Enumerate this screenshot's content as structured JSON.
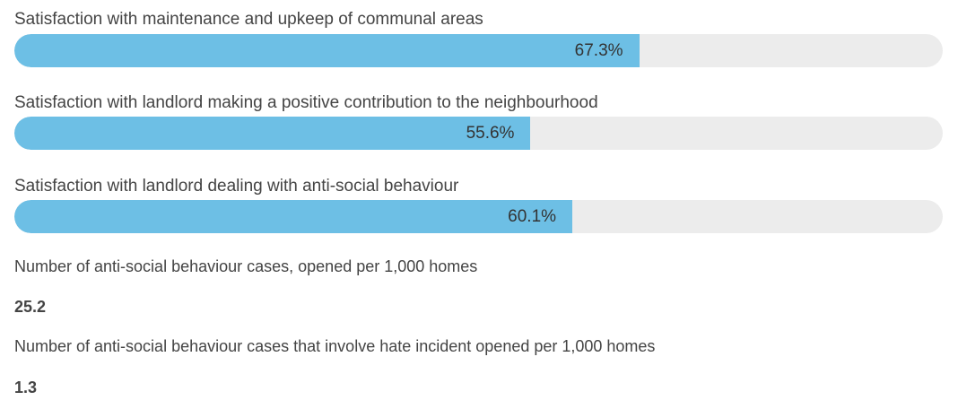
{
  "chart_data": {
    "type": "bar",
    "orientation": "horizontal",
    "xlim": [
      0,
      100
    ],
    "unit": "%",
    "categories": [
      "Satisfaction with maintenance and upkeep of communal areas",
      "Satisfaction with landlord making a positive contribution to the neighbourhood",
      "Satisfaction with landlord dealing with anti-social behaviour"
    ],
    "values": [
      67.3,
      55.6,
      60.1
    ],
    "value_labels": [
      "67.3%",
      "55.6%",
      "60.1%"
    ],
    "colors": {
      "fill": "#6dbfe5",
      "track": "#ececec"
    }
  },
  "stats": [
    {
      "label": "Number of anti-social behaviour cases, opened per 1,000 homes",
      "value": "25.2"
    },
    {
      "label": "Number of anti-social behaviour cases that involve hate incident opened per 1,000 homes",
      "value": "1.3"
    }
  ]
}
